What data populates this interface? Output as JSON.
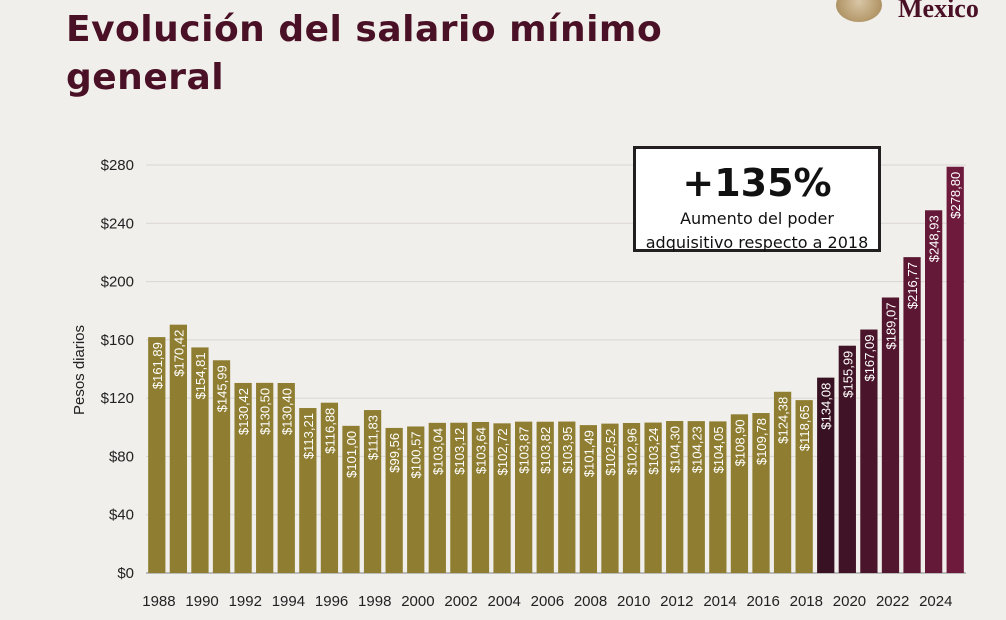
{
  "header": {
    "title_line1": "Evolución del salario mínimo",
    "title_line2": "general",
    "logo_text": "Mexico"
  },
  "callout": {
    "value": "+135%",
    "line1": "Aumento del poder",
    "line2": "adquisitivo respecto a 2018"
  },
  "colors": {
    "gold": "#8f7e32",
    "maroon": "#5a1a35",
    "title": "#4a1126"
  },
  "chart_data": {
    "type": "bar",
    "title": "Evolución del salario mínimo general",
    "ylabel": "Pesos diarios",
    "xlabel": "",
    "ylim": [
      0,
      280
    ],
    "yticks": [
      0,
      40,
      80,
      120,
      160,
      200,
      240,
      280
    ],
    "ytick_labels": [
      "$0",
      "$40",
      "$80",
      "$120",
      "$160",
      "$200",
      "$240",
      "$280"
    ],
    "grid": true,
    "categories": [
      "1988",
      "1989",
      "1990",
      "1991",
      "1992",
      "1993",
      "1994",
      "1995",
      "1996",
      "1997",
      "1998",
      "1999",
      "2000",
      "2001",
      "2002",
      "2003",
      "2004",
      "2005",
      "2006",
      "2007",
      "2008",
      "2009",
      "2010",
      "2011",
      "2012",
      "2013",
      "2014",
      "2015",
      "2016",
      "2017",
      "2018",
      "2019",
      "2020",
      "2021",
      "2022",
      "2023",
      "2024",
      "2025"
    ],
    "xtick_labels": [
      "1988",
      "",
      "1990",
      "",
      "1992",
      "",
      "1994",
      "",
      "1996",
      "",
      "1998",
      "",
      "2000",
      "",
      "2002",
      "",
      "2004",
      "",
      "2006",
      "",
      "2008",
      "",
      "2010",
      "",
      "2012",
      "",
      "2014",
      "",
      "2016",
      "",
      "2018",
      "",
      "2020",
      "",
      "2022",
      "",
      "2024",
      ""
    ],
    "values": [
      161.89,
      170.42,
      154.81,
      145.99,
      130.42,
      130.5,
      130.4,
      113.21,
      116.88,
      101.0,
      111.83,
      99.56,
      100.57,
      103.04,
      103.12,
      103.64,
      102.72,
      103.87,
      103.82,
      103.95,
      101.49,
      102.52,
      102.96,
      103.24,
      104.3,
      104.23,
      104.05,
      108.9,
      109.78,
      124.38,
      118.65,
      134.08,
      155.99,
      167.09,
      189.07,
      216.77,
      248.93,
      278.8
    ],
    "value_labels": [
      "$161,89",
      "$170,42",
      "$154,81",
      "$145,99",
      "$130,42",
      "$130,50",
      "$130,40",
      "$113,21",
      "$116,88",
      "$101,00",
      "$111,83",
      "$99,56",
      "$100,57",
      "$103,04",
      "$103,12",
      "$103,64",
      "$102,72",
      "$103,87",
      "$103,82",
      "$103,95",
      "$101,49",
      "$102,52",
      "$102,96",
      "$103,24",
      "$104,30",
      "$104,23",
      "$104,05",
      "$108,90",
      "$109,78",
      "$124,38",
      "$118,65",
      "$134,08",
      "$155,99",
      "$167,09",
      "$189,07",
      "$216,77",
      "$248,93",
      "$278,80"
    ],
    "highlight_from": "2019",
    "annotation": "+135% Aumento del poder adquisitivo respecto a 2018"
  }
}
